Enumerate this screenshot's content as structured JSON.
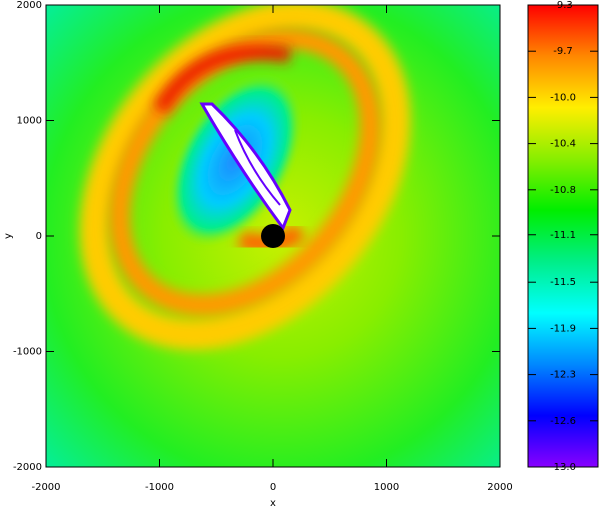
{
  "chart_data": {
    "type": "heatmap",
    "xlabel": "x",
    "ylabel": "y",
    "xlim": [
      -2000,
      2000
    ],
    "xticks": [
      -2000,
      -1000,
      0,
      1000,
      2000
    ],
    "ylim": [
      -2000,
      2000
    ],
    "yticks": [
      -2000,
      -1000,
      0,
      1000,
      2000
    ],
    "colorbar": {
      "lim": [
        -13.0,
        -9.3
      ],
      "ticks": [
        -9.3,
        {
          "value": -9.67,
          "label": "-9.7"
        },
        {
          "value": -10.04,
          "label": "-10.0"
        },
        {
          "value": -10.41,
          "label": "-10.4"
        },
        {
          "value": -10.78,
          "label": "-10.8"
        },
        {
          "value": -11.14,
          "label": "-11.1"
        },
        {
          "value": -11.52,
          "label": "-11.5"
        },
        {
          "value": -11.89,
          "label": "-11.9"
        },
        {
          "value": -12.26,
          "label": "-12.3"
        },
        {
          "value": -12.63,
          "label": "-12.6"
        },
        {
          "value": -13.0,
          "label": "-13.0"
        }
      ],
      "colors": [
        "#ff0000",
        "#ff8800",
        "#ffee00",
        "#88ee00",
        "#00ee00",
        "#00ee88",
        "#00ffff",
        "#0088ff",
        "#0000ff",
        "#8800ff"
      ]
    }
  }
}
